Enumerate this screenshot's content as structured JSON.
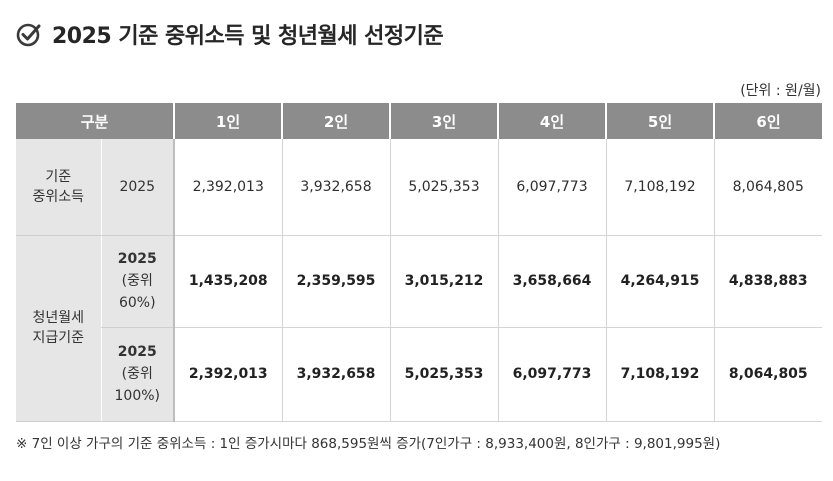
{
  "title": "2025 기준 중위소득 및 청년월세 선정기준",
  "unit_note": "(단위 : 원/월)",
  "table": {
    "headers": [
      "구분",
      "1인",
      "2인",
      "3인",
      "4인",
      "5인",
      "6인"
    ],
    "median_income": {
      "group_label_line1": "기준",
      "group_label_line2": "중위소득",
      "year": "2025",
      "values": [
        "2,392,013",
        "3,932,658",
        "5,025,353",
        "6,097,773",
        "7,108,192",
        "8,064,805"
      ]
    },
    "rent_support": {
      "group_label_line1": "청년월세",
      "group_label_line2": "지급기준",
      "rows": [
        {
          "year": "2025",
          "line2": "(중위",
          "line3": "60%)",
          "values": [
            "1,435,208",
            "2,359,595",
            "3,015,212",
            "3,658,664",
            "4,264,915",
            "4,838,883"
          ]
        },
        {
          "year": "2025",
          "line2": "(중위",
          "line3": "100%)",
          "values": [
            "2,392,013",
            "3,932,658",
            "5,025,353",
            "6,097,773",
            "7,108,192",
            "8,064,805"
          ]
        }
      ]
    }
  },
  "footnote": "※ 7인 이상 가구의 기준 중위소득 : 1인 증가시마다 868,595원씩 증가(7인가구 : 8,933,400원, 8인가구 : 9,801,995원)",
  "icon": "check-circle-icon"
}
